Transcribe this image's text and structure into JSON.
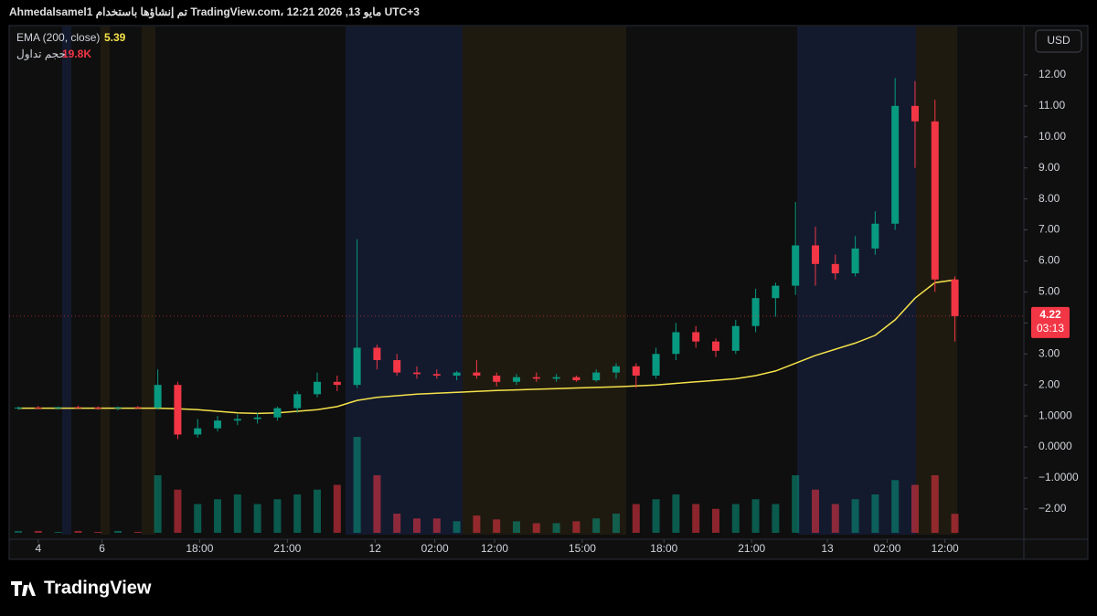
{
  "header": "Ahmedalsamel1 تم إنشاؤها باستخدام TradingView.com، 12:21 2026 ,13 مايو UTC+3",
  "brand": "TradingView",
  "chart_data": {
    "type": "candlestick",
    "currency": "USD",
    "ema_name": "EMA (200, close)",
    "volume_name": "حجم تداول",
    "volume_value_label": "19.8K",
    "countdown": "03:13",
    "categories": [
      null,
      null,
      null,
      null,
      null,
      null,
      null,
      null,
      null,
      null,
      null,
      null,
      null,
      null,
      null,
      null,
      null,
      null,
      null,
      null,
      null,
      null,
      null,
      null,
      null,
      null,
      null,
      null,
      null,
      null,
      null,
      null,
      null,
      null,
      null,
      null,
      null,
      null,
      null,
      null,
      null,
      null,
      null,
      null,
      null,
      null,
      null,
      null
    ],
    "open": [
      1.25,
      1.27,
      1.26,
      1.28,
      1.27,
      1.25,
      1.28,
      1.26,
      2.0,
      0.4,
      0.6,
      0.85,
      0.9,
      0.95,
      1.25,
      1.7,
      2.1,
      2.0,
      3.2,
      2.8,
      2.4,
      2.35,
      2.3,
      2.4,
      2.3,
      2.1,
      2.25,
      2.2,
      2.25,
      2.15,
      2.4,
      2.6,
      2.3,
      3.0,
      3.7,
      3.4,
      3.1,
      3.9,
      4.8,
      5.2,
      6.5,
      5.9,
      5.6,
      6.4,
      7.2,
      11.0,
      10.5,
      5.4
    ],
    "high": [
      1.3,
      1.32,
      1.3,
      1.33,
      1.31,
      1.3,
      1.32,
      2.5,
      2.1,
      0.9,
      1.0,
      1.05,
      1.1,
      1.3,
      1.8,
      2.4,
      2.3,
      6.7,
      3.3,
      3.0,
      2.6,
      2.5,
      2.45,
      2.8,
      2.4,
      2.35,
      2.4,
      2.35,
      2.3,
      2.5,
      2.7,
      2.7,
      3.2,
      4.0,
      3.9,
      3.5,
      4.1,
      5.1,
      5.3,
      7.9,
      7.1,
      6.2,
      6.8,
      7.6,
      11.9,
      11.8,
      11.2,
      5.5
    ],
    "low": [
      1.2,
      1.22,
      1.2,
      1.24,
      1.2,
      1.18,
      1.22,
      1.2,
      0.25,
      0.3,
      0.5,
      0.7,
      0.75,
      0.85,
      1.1,
      1.6,
      1.8,
      1.9,
      2.5,
      2.3,
      2.2,
      2.2,
      2.15,
      2.2,
      1.95,
      2.0,
      2.1,
      2.1,
      2.1,
      2.1,
      2.2,
      1.9,
      2.2,
      2.8,
      3.2,
      2.9,
      3.0,
      3.7,
      4.2,
      4.9,
      5.2,
      5.4,
      5.5,
      6.2,
      7.0,
      9.0,
      5.0,
      3.4
    ],
    "close": [
      1.27,
      1.26,
      1.28,
      1.27,
      1.25,
      1.28,
      1.26,
      2.0,
      0.4,
      0.6,
      0.85,
      0.9,
      0.95,
      1.25,
      1.7,
      2.1,
      2.0,
      3.2,
      2.8,
      2.4,
      2.35,
      2.3,
      2.4,
      2.3,
      2.1,
      2.25,
      2.2,
      2.25,
      2.15,
      2.4,
      2.6,
      2.3,
      3.0,
      3.7,
      3.4,
      3.1,
      3.9,
      4.8,
      5.2,
      6.5,
      5.9,
      5.6,
      6.4,
      7.2,
      11.0,
      10.5,
      5.4,
      4.22
    ],
    "ema": [
      1.25,
      1.25,
      1.25,
      1.25,
      1.25,
      1.25,
      1.25,
      1.25,
      1.23,
      1.2,
      1.15,
      1.1,
      1.08,
      1.1,
      1.15,
      1.2,
      1.3,
      1.5,
      1.6,
      1.65,
      1.7,
      1.73,
      1.76,
      1.79,
      1.82,
      1.84,
      1.86,
      1.88,
      1.9,
      1.92,
      1.94,
      1.97,
      2.0,
      2.05,
      2.1,
      2.15,
      2.2,
      2.3,
      2.45,
      2.7,
      2.95,
      3.15,
      3.35,
      3.6,
      4.1,
      4.8,
      5.3,
      5.39
    ],
    "volume": [
      2000,
      2000,
      1000,
      2000,
      1000,
      2000,
      1000,
      60000,
      45000,
      30000,
      35000,
      40000,
      30000,
      35000,
      40000,
      45000,
      50000,
      100000,
      60000,
      20000,
      15000,
      15000,
      12000,
      18000,
      14000,
      12000,
      10000,
      10000,
      12000,
      15000,
      20000,
      30000,
      35000,
      40000,
      30000,
      25000,
      30000,
      35000,
      30000,
      60000,
      45000,
      30000,
      35000,
      40000,
      55000,
      50000,
      60000,
      19800
    ],
    "up_color": "#089981",
    "down_color": "#f23645",
    "ema_color": "#f5e24a",
    "ylim": [
      -2.83,
      13.59
    ],
    "yticks": [
      {
        "value": 12,
        "label": "12.00"
      },
      {
        "value": 11,
        "label": "11.00"
      },
      {
        "value": 10,
        "label": "10.00"
      },
      {
        "value": 9,
        "label": "9.00"
      },
      {
        "value": 8,
        "label": "8.00"
      },
      {
        "value": 7,
        "label": "7.00"
      },
      {
        "value": 6,
        "label": "6.00"
      },
      {
        "value": 5,
        "label": "5.00"
      },
      {
        "value": 4,
        "label": "4.00"
      },
      {
        "value": 3,
        "label": "3.00"
      },
      {
        "value": 2,
        "label": "2.00"
      },
      {
        "value": 1,
        "label": "1.0000"
      },
      {
        "value": 0,
        "label": "0.0000"
      },
      {
        "value": -1,
        "label": "−1.0000"
      },
      {
        "value": -2,
        "label": "−2.00"
      }
    ],
    "xlim": [
      -0.46,
      50.46
    ],
    "xticks": [
      {
        "value": 1.0,
        "label": "4"
      },
      {
        "value": 4.2,
        "label": "6"
      },
      {
        "value": 9.1,
        "label": "18:00"
      },
      {
        "value": 13.5,
        "label": "21:00"
      },
      {
        "value": 17.9,
        "label": "12"
      },
      {
        "value": 20.9,
        "label": "02:00"
      },
      {
        "value": 23.9,
        "label": "12:00"
      },
      {
        "value": 28.3,
        "label": "15:00"
      },
      {
        "value": 32.4,
        "label": "18:00"
      },
      {
        "value": 36.8,
        "label": "21:00"
      },
      {
        "value": 40.6,
        "label": "13"
      },
      {
        "value": 43.6,
        "label": "02:00"
      },
      {
        "value": 46.5,
        "label": "12:00"
      }
    ]
  }
}
